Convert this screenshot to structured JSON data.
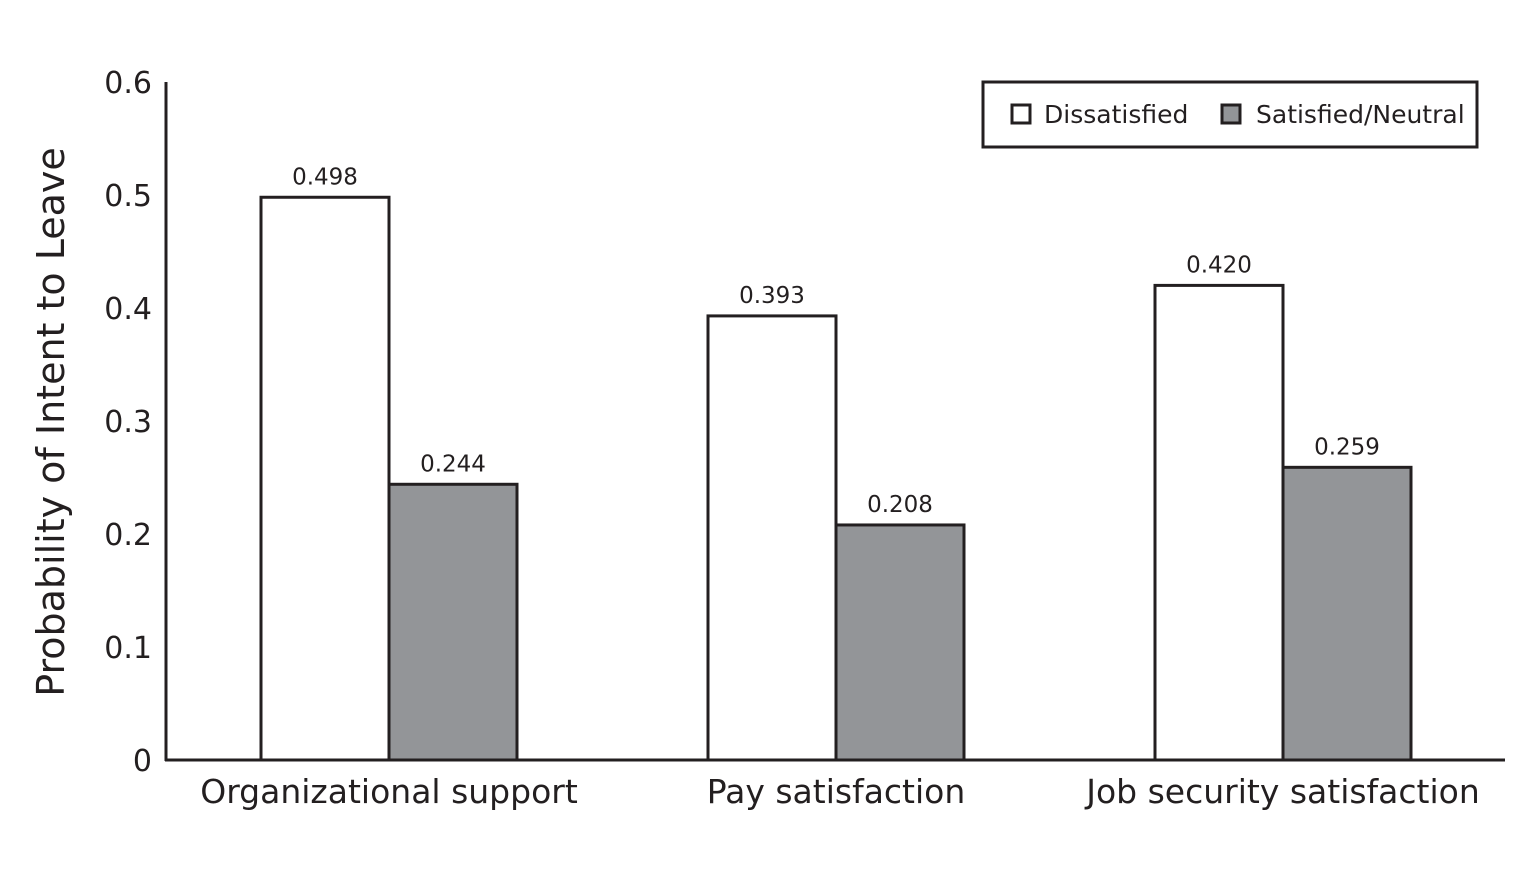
{
  "chart_data": {
    "type": "bar",
    "title": "",
    "xlabel": "",
    "ylabel": "Probability of Intent to Leave",
    "ylim": [
      0,
      0.6
    ],
    "yticks": [
      "0",
      "0.1",
      "0.2",
      "0.3",
      "0.4",
      "0.5",
      "0.6"
    ],
    "categories": [
      "Organizational support",
      "Pay satisfaction",
      "Job security satisfaction"
    ],
    "series": [
      {
        "name": "Dissatisfied",
        "values": [
          0.498,
          0.393,
          0.42
        ],
        "labels": [
          "0.498",
          "0.393",
          "0.420"
        ],
        "color": "#ffffff"
      },
      {
        "name": "Satisfied/Neutral",
        "values": [
          0.244,
          0.208,
          0.259
        ],
        "labels": [
          "0.244",
          "0.208",
          "0.259"
        ],
        "color": "#939598"
      }
    ],
    "grid": false,
    "legend": "top-right"
  }
}
